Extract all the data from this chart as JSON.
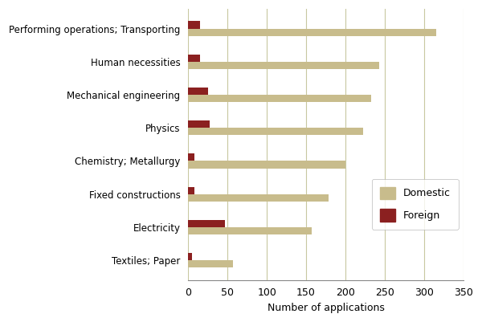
{
  "categories": [
    "Performing operations; Transporting",
    "Human necessities",
    "Mechanical engineering",
    "Physics",
    "Chemistry; Metallurgy",
    "Fixed constructions",
    "Electricity",
    "Textiles; Paper"
  ],
  "domestic": [
    315,
    243,
    233,
    222,
    200,
    178,
    157,
    57
  ],
  "foreign": [
    15,
    15,
    25,
    27,
    8,
    8,
    47,
    5
  ],
  "domestic_color": "#c8bc8c",
  "foreign_color": "#8b2020",
  "xlabel": "Number of applications",
  "xlim": [
    0,
    350
  ],
  "xticks": [
    0,
    50,
    100,
    150,
    200,
    250,
    300,
    350
  ],
  "legend_labels": [
    "Domestic",
    "Foreign"
  ],
  "bar_height": 0.22,
  "background_color": "#ffffff",
  "grid_color": "#c8c8a0"
}
